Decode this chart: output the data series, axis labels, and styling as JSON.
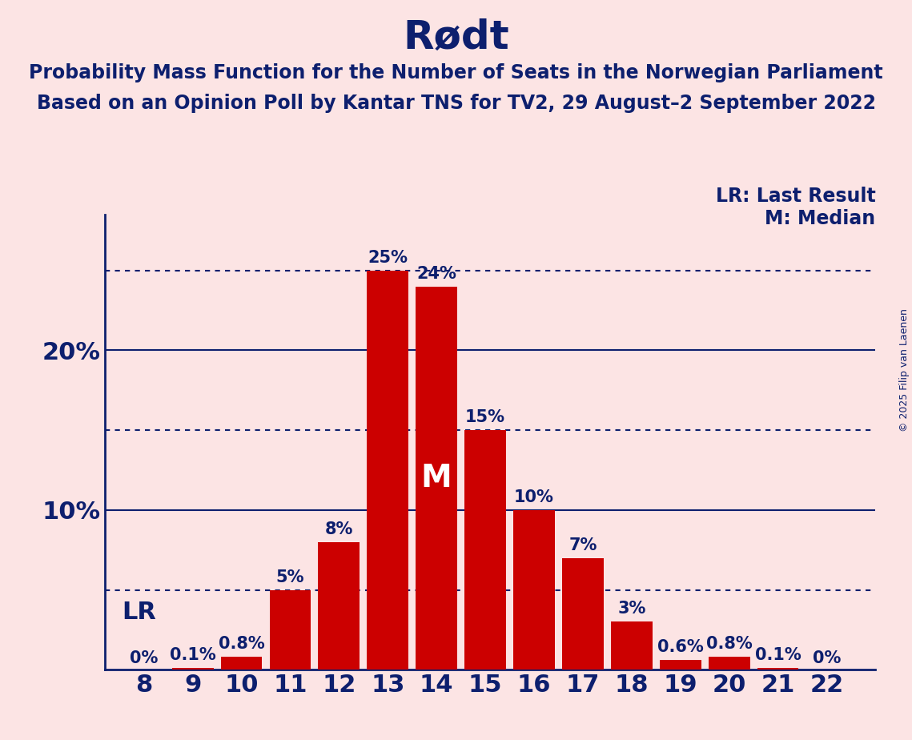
{
  "title": "Rødt",
  "subtitle_line1": "Probability Mass Function for the Number of Seats in the Norwegian Parliament",
  "subtitle_line2": "Based on an Opinion Poll by Kantar TNS for TV2, 29 August–2 September 2022",
  "copyright": "© 2025 Filip van Laenen",
  "seats": [
    8,
    9,
    10,
    11,
    12,
    13,
    14,
    15,
    16,
    17,
    18,
    19,
    20,
    21,
    22
  ],
  "probabilities": [
    0.0,
    0.001,
    0.008,
    0.05,
    0.08,
    0.25,
    0.24,
    0.15,
    0.1,
    0.07,
    0.03,
    0.006,
    0.008,
    0.001,
    0.0
  ],
  "labels": [
    "0%",
    "0.1%",
    "0.8%",
    "5%",
    "8%",
    "25%",
    "24%",
    "15%",
    "10%",
    "7%",
    "3%",
    "0.6%",
    "0.8%",
    "0.1%",
    "0%"
  ],
  "bar_color": "#cc0000",
  "background_color": "#fce4e4",
  "text_color": "#0d1f6e",
  "median_seat": 14,
  "last_result_seat": 8,
  "dotted_lines": [
    0.05,
    0.15,
    0.25
  ],
  "solid_lines": [
    0.1,
    0.2
  ],
  "legend_lr_text": "LR: Last Result",
  "legend_m_text": "M: Median",
  "lr_label": "LR",
  "m_label": "M",
  "title_fontsize": 36,
  "subtitle_fontsize": 17,
  "axis_label_fontsize": 22,
  "bar_label_fontsize": 15,
  "legend_fontsize": 17,
  "m_fontsize": 28,
  "lr_fontsize": 22,
  "copyright_fontsize": 9,
  "ylim": [
    0,
    0.285
  ]
}
